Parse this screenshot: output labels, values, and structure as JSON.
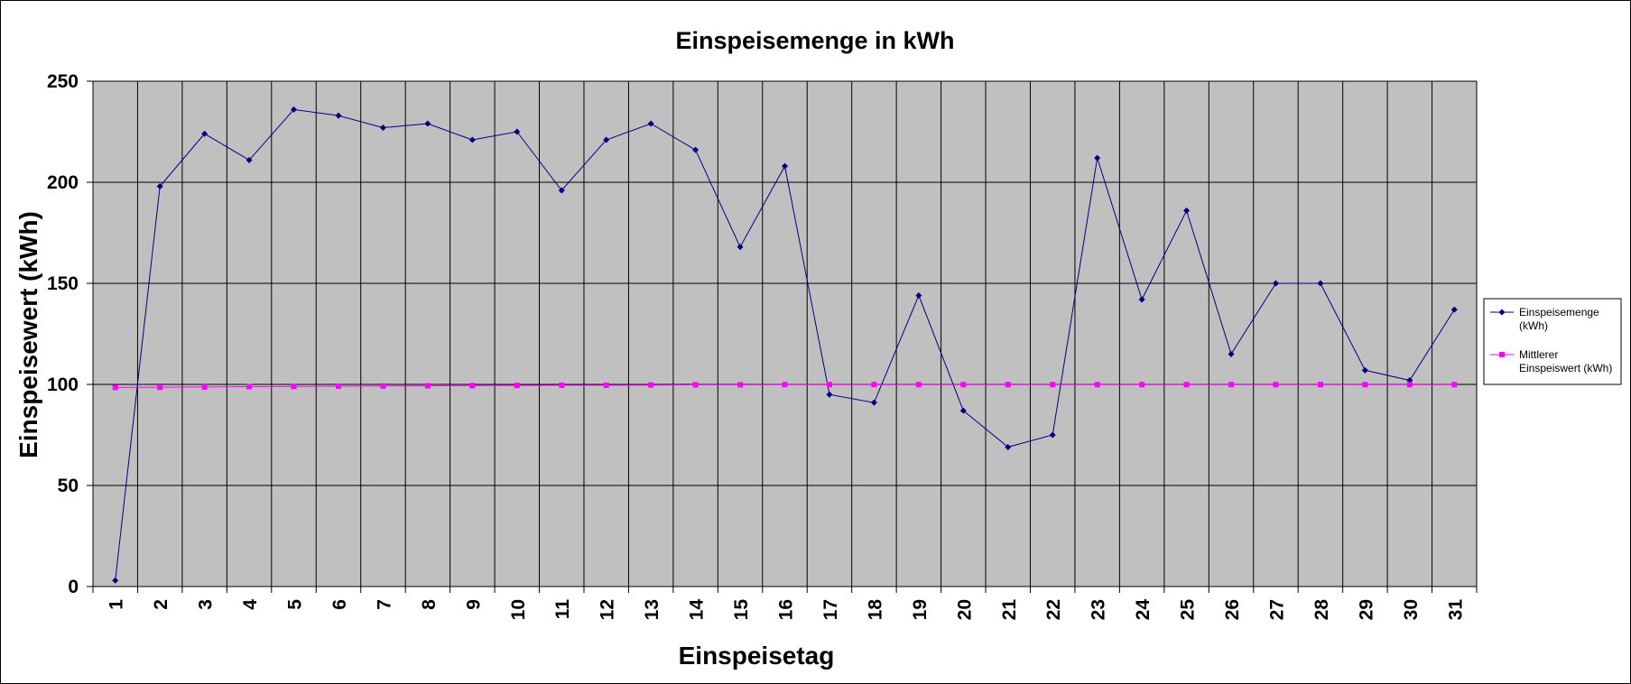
{
  "chart_data": {
    "type": "line",
    "title": "Einspeisemenge in kWh",
    "xlabel": "Einspeisetag",
    "ylabel": "Einspeisewert  (kWh)",
    "categories": [
      "1",
      "2",
      "3",
      "4",
      "5",
      "6",
      "7",
      "8",
      "9",
      "10",
      "11",
      "12",
      "13",
      "14",
      "15",
      "16",
      "17",
      "18",
      "19",
      "20",
      "21",
      "22",
      "23",
      "24",
      "25",
      "26",
      "27",
      "28",
      "29",
      "30",
      "31"
    ],
    "ylim": [
      0,
      250
    ],
    "yticks": [
      0,
      50,
      100,
      150,
      200,
      250
    ],
    "grid": true,
    "legend_position": "right",
    "plot_background": "#c0c0c0",
    "series": [
      {
        "name": "Einspeisemenge (kWh)",
        "legend_lines": [
          "Einspeisemenge",
          "(kWh)"
        ],
        "color": "#000080",
        "marker": "diamond",
        "values": [
          3,
          198,
          224,
          211,
          236,
          233,
          227,
          229,
          221,
          225,
          196,
          221,
          229,
          216,
          168,
          208,
          95,
          91,
          144,
          87,
          69,
          75,
          212,
          142,
          186,
          115,
          150,
          150,
          107,
          102,
          137
        ]
      },
      {
        "name": "Mittlerer Einspeiswert (kWh)",
        "legend_lines": [
          "Mittlerer",
          "Einspeiswert (kWh)"
        ],
        "color": "#ff00ff",
        "marker": "square",
        "values": [
          98.5,
          98.6,
          98.7,
          98.9,
          99.0,
          99.1,
          99.2,
          99.3,
          99.4,
          99.5,
          99.6,
          99.6,
          99.7,
          99.8,
          99.8,
          99.9,
          99.9,
          99.9,
          99.9,
          99.9,
          99.9,
          99.9,
          99.9,
          99.9,
          99.9,
          99.9,
          99.9,
          99.9,
          99.9,
          99.9,
          99.9
        ]
      }
    ]
  }
}
